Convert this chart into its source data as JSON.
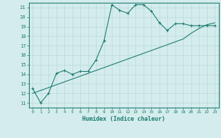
{
  "x": [
    0,
    1,
    2,
    3,
    4,
    5,
    6,
    7,
    8,
    9,
    10,
    11,
    12,
    13,
    14,
    15,
    16,
    17,
    18,
    19,
    20,
    21,
    22,
    23
  ],
  "y_line": [
    12.5,
    11.0,
    12.0,
    14.1,
    14.4,
    14.0,
    14.3,
    14.3,
    15.5,
    17.5,
    21.3,
    20.7,
    20.4,
    21.3,
    21.3,
    20.6,
    19.4,
    18.6,
    19.3,
    19.3,
    19.1,
    19.1,
    19.1,
    19.1
  ],
  "y_trend": [
    12.0,
    12.3,
    12.6,
    12.9,
    13.2,
    13.5,
    13.8,
    14.1,
    14.4,
    14.7,
    15.0,
    15.3,
    15.6,
    15.9,
    16.2,
    16.5,
    16.8,
    17.1,
    17.4,
    17.7,
    18.3,
    18.8,
    19.2,
    19.4
  ],
  "color_main": "#1a7a6e",
  "color_trend": "#1a7a6e",
  "bg_color": "#d4ecec",
  "grid_color": "#b8d8d8",
  "xlabel": "Humidex (Indice chaleur)",
  "ylabel_min": 11,
  "ylabel_max": 21,
  "xmin": 0,
  "xmax": 23
}
